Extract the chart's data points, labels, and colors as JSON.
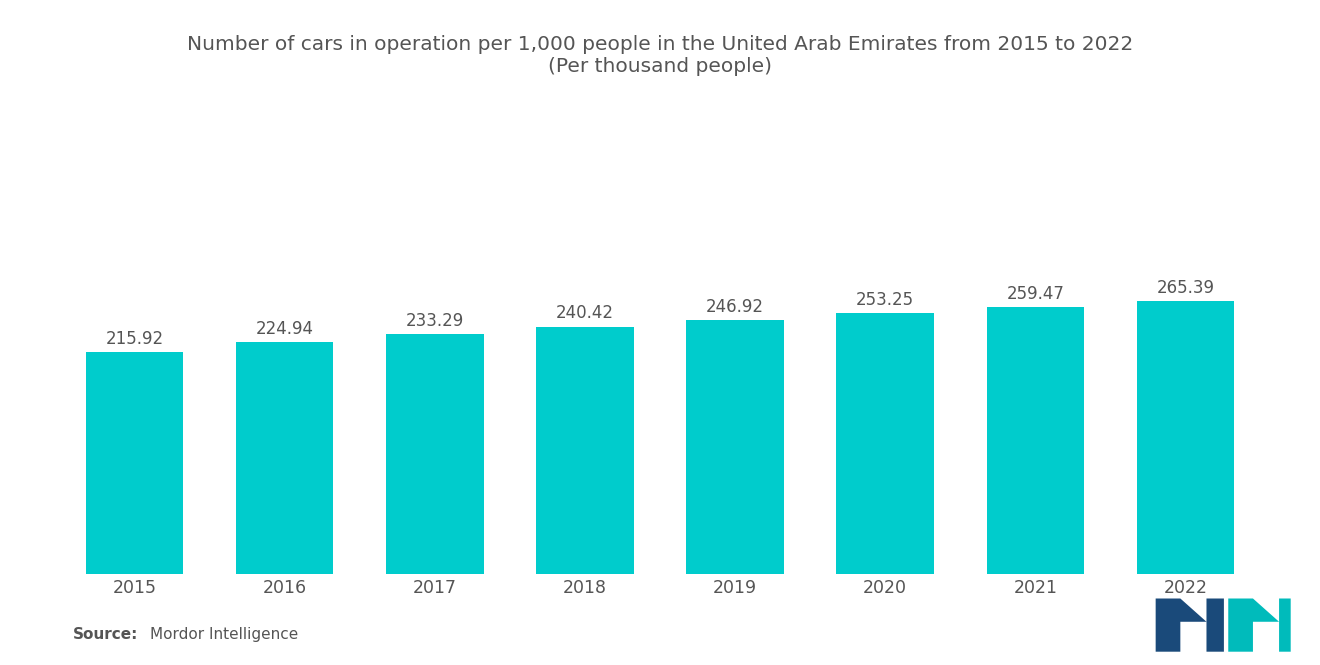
{
  "title_line1": "Number of cars in operation per 1,000 people in the United Arab Emirates from 2015 to 2022",
  "title_line2": "(Per thousand people)",
  "categories": [
    "2015",
    "2016",
    "2017",
    "2018",
    "2019",
    "2020",
    "2021",
    "2022"
  ],
  "values": [
    215.92,
    224.94,
    233.29,
    240.42,
    246.92,
    253.25,
    259.47,
    265.39
  ],
  "bar_color": "#00CCCC",
  "background_color": "#ffffff",
  "label_color": "#555555",
  "title_color": "#555555",
  "source_bold": "Source:",
  "source_text": "Mordor Intelligence",
  "ylim": [
    0,
    450
  ],
  "bar_width": 0.65,
  "title_fontsize": 14.5,
  "tick_fontsize": 12.5,
  "source_fontsize": 11,
  "value_label_fontsize": 12,
  "logo_color_dark": "#1a4a7a",
  "logo_color_teal": "#00BBBB"
}
